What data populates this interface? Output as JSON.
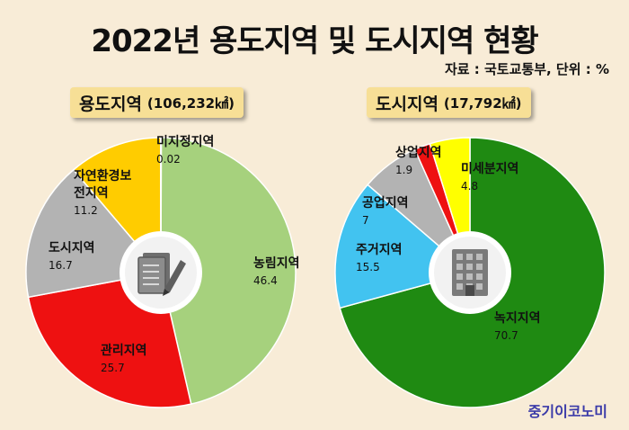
{
  "title": "2022년 용도지역 및 도시지역 현황",
  "source": "자료 : 국토교통부, 단위 : %",
  "brand": "중기이코노미",
  "chart_data": [
    {
      "type": "pie",
      "panel_name": "용도지역",
      "panel_area": "(106,232㎢)",
      "icon": "document-pen-icon",
      "slices": [
        {
          "label": "농림지역",
          "value": 46.4,
          "color": "#a6d17d"
        },
        {
          "label": "관리지역",
          "value": 25.7,
          "color": "#ee1111"
        },
        {
          "label": "도시지역",
          "value": 16.7,
          "color": "#b3b3b3"
        },
        {
          "label": "자연환경보전지역",
          "label_lines": [
            "자연환경보",
            "전지역"
          ],
          "value": 11.2,
          "color": "#ffcc00"
        },
        {
          "label": "미지정지역",
          "value": 0.02,
          "color": "#ffcc00"
        }
      ]
    },
    {
      "type": "pie",
      "panel_name": "도시지역",
      "panel_area": "(17,792㎢)",
      "icon": "building-icon",
      "slices": [
        {
          "label": "녹지지역",
          "value": 70.7,
          "color": "#1f8a12"
        },
        {
          "label": "주거지역",
          "value": 15.5,
          "color": "#42c3f0"
        },
        {
          "label": "공업지역",
          "value": 7,
          "color": "#b3b3b3"
        },
        {
          "label": "상업지역",
          "value": 1.9,
          "color": "#ee1111"
        },
        {
          "label": "미세분지역",
          "value": 4.8,
          "color": "#ffff00"
        }
      ]
    }
  ]
}
